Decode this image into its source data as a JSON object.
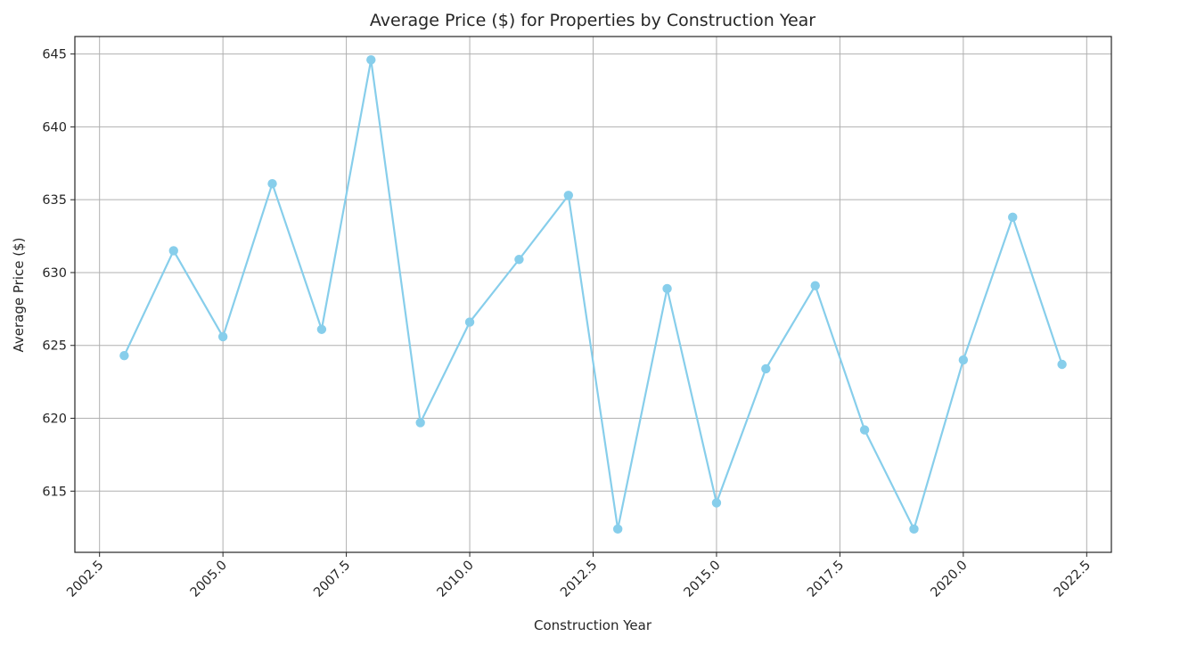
{
  "chart_data": {
    "type": "line",
    "title": "Average Price ($) for Properties by Construction Year",
    "xlabel": "Construction Year",
    "ylabel": "Average Price ($)",
    "xlim": [
      2002.0,
      2023.0
    ],
    "ylim": [
      610.8,
      646.2
    ],
    "xticks": [
      2002.5,
      2005.0,
      2007.5,
      2010.0,
      2012.5,
      2015.0,
      2017.5,
      2020.0,
      2022.5
    ],
    "xtick_labels": [
      "2002.5",
      "2005.0",
      "2007.5",
      "2010.0",
      "2012.5",
      "2015.0",
      "2017.5",
      "2020.0",
      "2022.5"
    ],
    "yticks": [
      615,
      620,
      625,
      630,
      635,
      640,
      645
    ],
    "ytick_labels": [
      "615",
      "620",
      "625",
      "630",
      "635",
      "640",
      "645"
    ],
    "grid": true,
    "series": [
      {
        "color": "#87ceeb",
        "marker": "circle",
        "x": [
          2003,
          2004,
          2005,
          2006,
          2007,
          2008,
          2009,
          2010,
          2011,
          2012,
          2013,
          2014,
          2015,
          2016,
          2017,
          2018,
          2019,
          2020,
          2021,
          2022
        ],
        "y": [
          624.3,
          631.5,
          625.6,
          636.1,
          626.1,
          644.6,
          619.7,
          626.6,
          630.9,
          635.3,
          612.4,
          628.9,
          614.2,
          623.4,
          629.1,
          619.2,
          612.4,
          624.0,
          633.8,
          623.7
        ]
      }
    ]
  }
}
